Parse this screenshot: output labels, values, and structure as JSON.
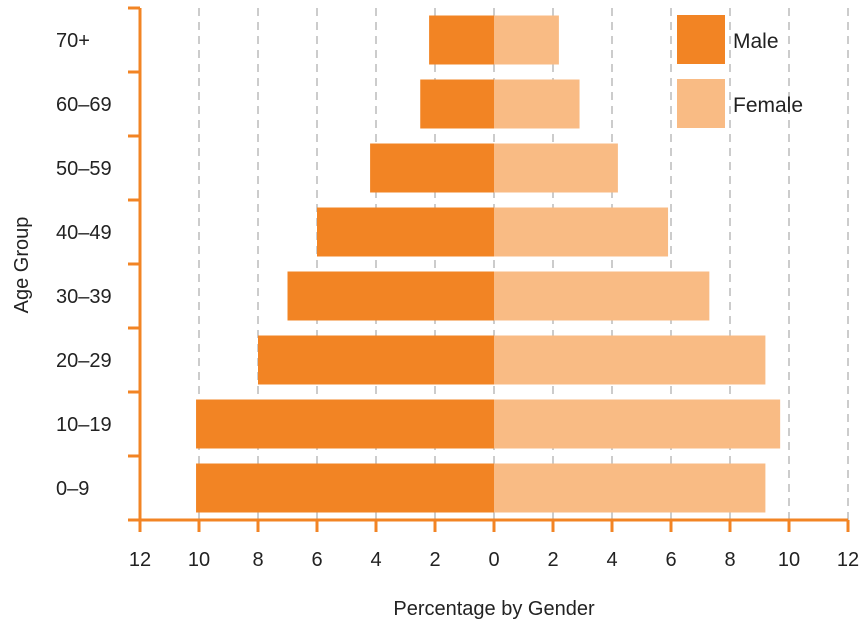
{
  "chart_data": {
    "type": "bar",
    "orientation": "horizontal-population-pyramid",
    "categories": [
      "0–9",
      "10–19",
      "20–29",
      "30–39",
      "40–49",
      "50–59",
      "60–69",
      "70+"
    ],
    "series": [
      {
        "name": "Male",
        "color": "#F28424",
        "values": [
          10.1,
          10.1,
          8.0,
          7.0,
          6.0,
          4.2,
          2.5,
          2.2
        ]
      },
      {
        "name": "Female",
        "color": "#F9BB84",
        "values": [
          9.2,
          9.7,
          9.2,
          7.3,
          5.9,
          4.2,
          2.9,
          2.2
        ]
      }
    ],
    "xlabel": "Percentage by Gender",
    "ylabel": "Age Group",
    "xlim": [
      -12,
      12
    ],
    "xticks": [
      -12,
      -10,
      -8,
      -6,
      -4,
      -2,
      0,
      2,
      4,
      6,
      8,
      10,
      12
    ],
    "xtick_labels": [
      "12",
      "10",
      "8",
      "6",
      "4",
      "2",
      "0",
      "2",
      "4",
      "6",
      "8",
      "10",
      "12"
    ],
    "grid": "vertical dashed",
    "legend_position": "top-right",
    "axis_color": "#F28424",
    "grid_color": "#CCCCCC"
  }
}
